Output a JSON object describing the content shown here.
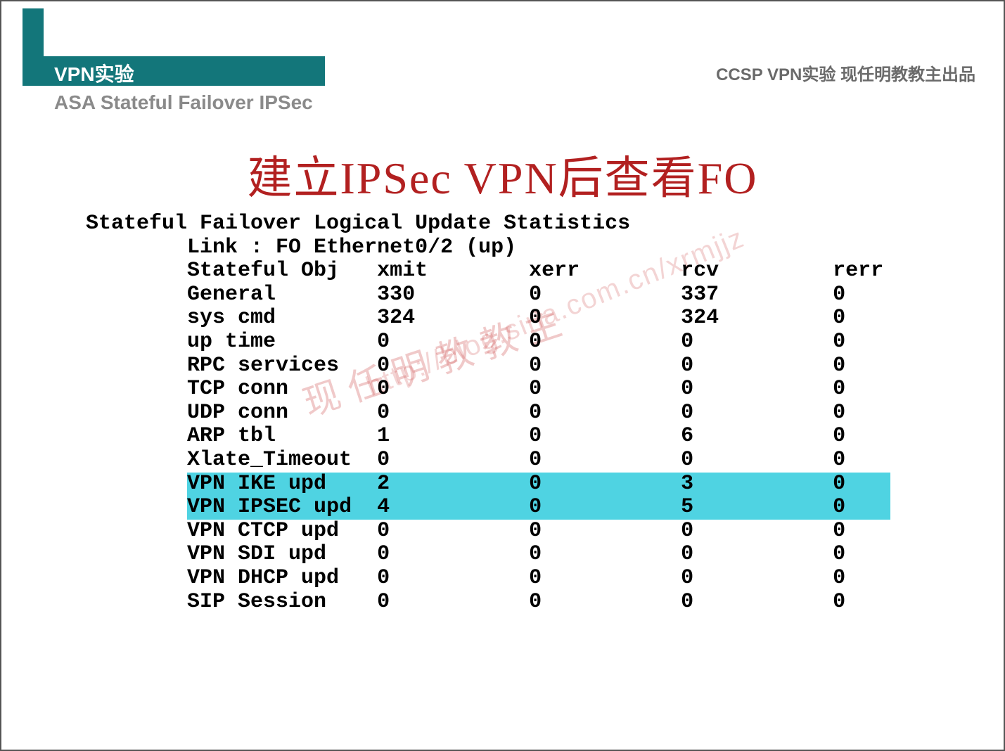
{
  "header": {
    "left": "VPN实验",
    "right": "CCSP VPN实验  现任明教教主出品",
    "subtitle": "ASA Stateful Failover IPSec"
  },
  "main_title": "建立IPSec VPN后查看FO",
  "watermark_text": "现任明教教主",
  "watermark_url": "http://blog.sina.com.cn/xrmjjz",
  "terminal": {
    "title": "Stateful Failover Logical Update Statistics",
    "link_line": "        Link : FO Ethernet0/2 (up)",
    "columns_header": {
      "c0": "Stateful Obj",
      "c1": "xmit",
      "c2": "xerr",
      "c3": "rcv",
      "c4": "rerr"
    },
    "rows": [
      {
        "c0": "General",
        "c1": "330",
        "c2": "0",
        "c3": "337",
        "c4": "0",
        "hl": false
      },
      {
        "c0": "sys cmd",
        "c1": "324",
        "c2": "0",
        "c3": "324",
        "c4": "0",
        "hl": false
      },
      {
        "c0": "up time",
        "c1": "0",
        "c2": "0",
        "c3": "0",
        "c4": "0",
        "hl": false
      },
      {
        "c0": "RPC services",
        "c1": "0",
        "c2": "0",
        "c3": "0",
        "c4": "0",
        "hl": false
      },
      {
        "c0": "TCP conn",
        "c1": "0",
        "c2": "0",
        "c3": "0",
        "c4": "0",
        "hl": false
      },
      {
        "c0": "UDP conn",
        "c1": "0",
        "c2": "0",
        "c3": "0",
        "c4": "0",
        "hl": false
      },
      {
        "c0": "ARP tbl",
        "c1": "1",
        "c2": "0",
        "c3": "6",
        "c4": "0",
        "hl": false
      },
      {
        "c0": "Xlate_Timeout",
        "c1": "0",
        "c2": "0",
        "c3": "0",
        "c4": "0",
        "hl": false
      },
      {
        "c0": "VPN IKE upd",
        "c1": "2",
        "c2": "0",
        "c3": "3",
        "c4": "0",
        "hl": true
      },
      {
        "c0": "VPN IPSEC upd",
        "c1": "4",
        "c2": "0",
        "c3": "5",
        "c4": "0",
        "hl": true
      },
      {
        "c0": "VPN CTCP upd",
        "c1": "0",
        "c2": "0",
        "c3": "0",
        "c4": "0",
        "hl": false
      },
      {
        "c0": "VPN SDI upd",
        "c1": "0",
        "c2": "0",
        "c3": "0",
        "c4": "0",
        "hl": false
      },
      {
        "c0": "VPN DHCP upd",
        "c1": "0",
        "c2": "0",
        "c3": "0",
        "c4": "0",
        "hl": false
      },
      {
        "c0": "SIP Session",
        "c1": "0",
        "c2": "0",
        "c3": "0",
        "c4": "0",
        "hl": false
      }
    ],
    "col_widths": {
      "indent": 8,
      "c0": 15,
      "c1": 12,
      "c2": 12,
      "c3": 12,
      "c4": 4
    },
    "highlight_color": "#4fd3e2"
  }
}
